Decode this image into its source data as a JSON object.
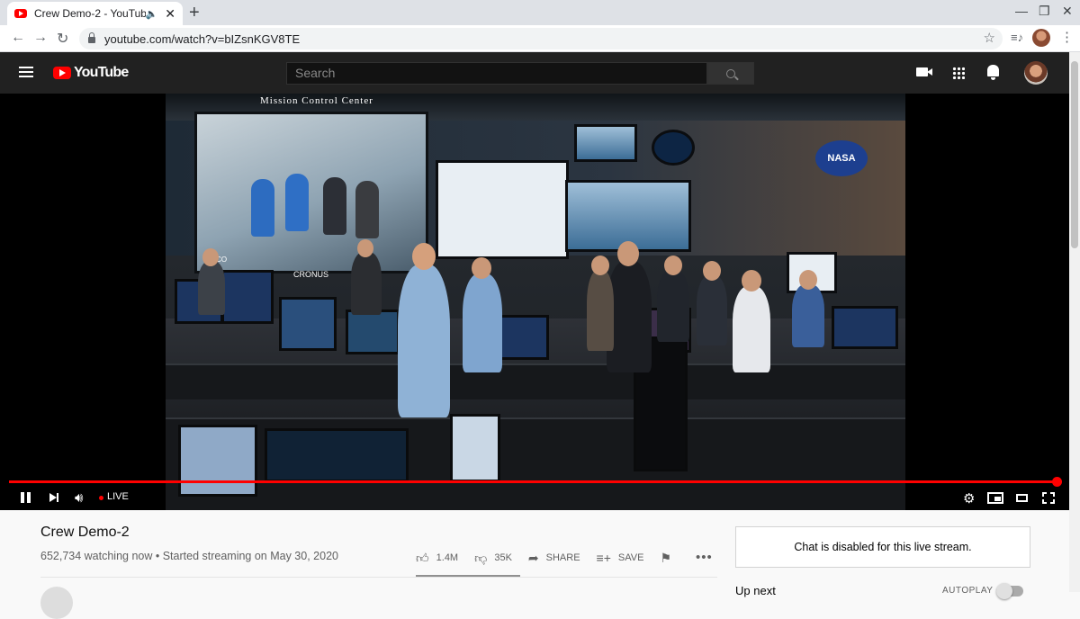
{
  "browser": {
    "tab_title": "Crew Demo-2 - YouTube",
    "url": "youtube.com/watch?v=bIZsnKGV8TE"
  },
  "masthead": {
    "logo_text": "YouTube",
    "search_placeholder": "Search"
  },
  "player": {
    "live_label": "LIVE",
    "progress_fraction": 1.0,
    "state": "playing",
    "overlay_text": {
      "banner": "Mission Control Center",
      "nasa": "NASA",
      "console_label": "CRONUS",
      "adco": "ADCO"
    }
  },
  "video": {
    "title": "Crew Demo-2",
    "meta": "652,734 watching now • Started streaming on May 30, 2020",
    "actions": {
      "like_count": "1.4M",
      "dislike_count": "35K",
      "share_label": "SHARE",
      "save_label": "SAVE"
    }
  },
  "sidebar": {
    "chat_disabled": "Chat is disabled for this live stream.",
    "up_next": "Up next",
    "autoplay_label": "AUTOPLAY"
  },
  "colors": {
    "brand_red": "#ff0000",
    "masthead_bg": "#212121"
  }
}
